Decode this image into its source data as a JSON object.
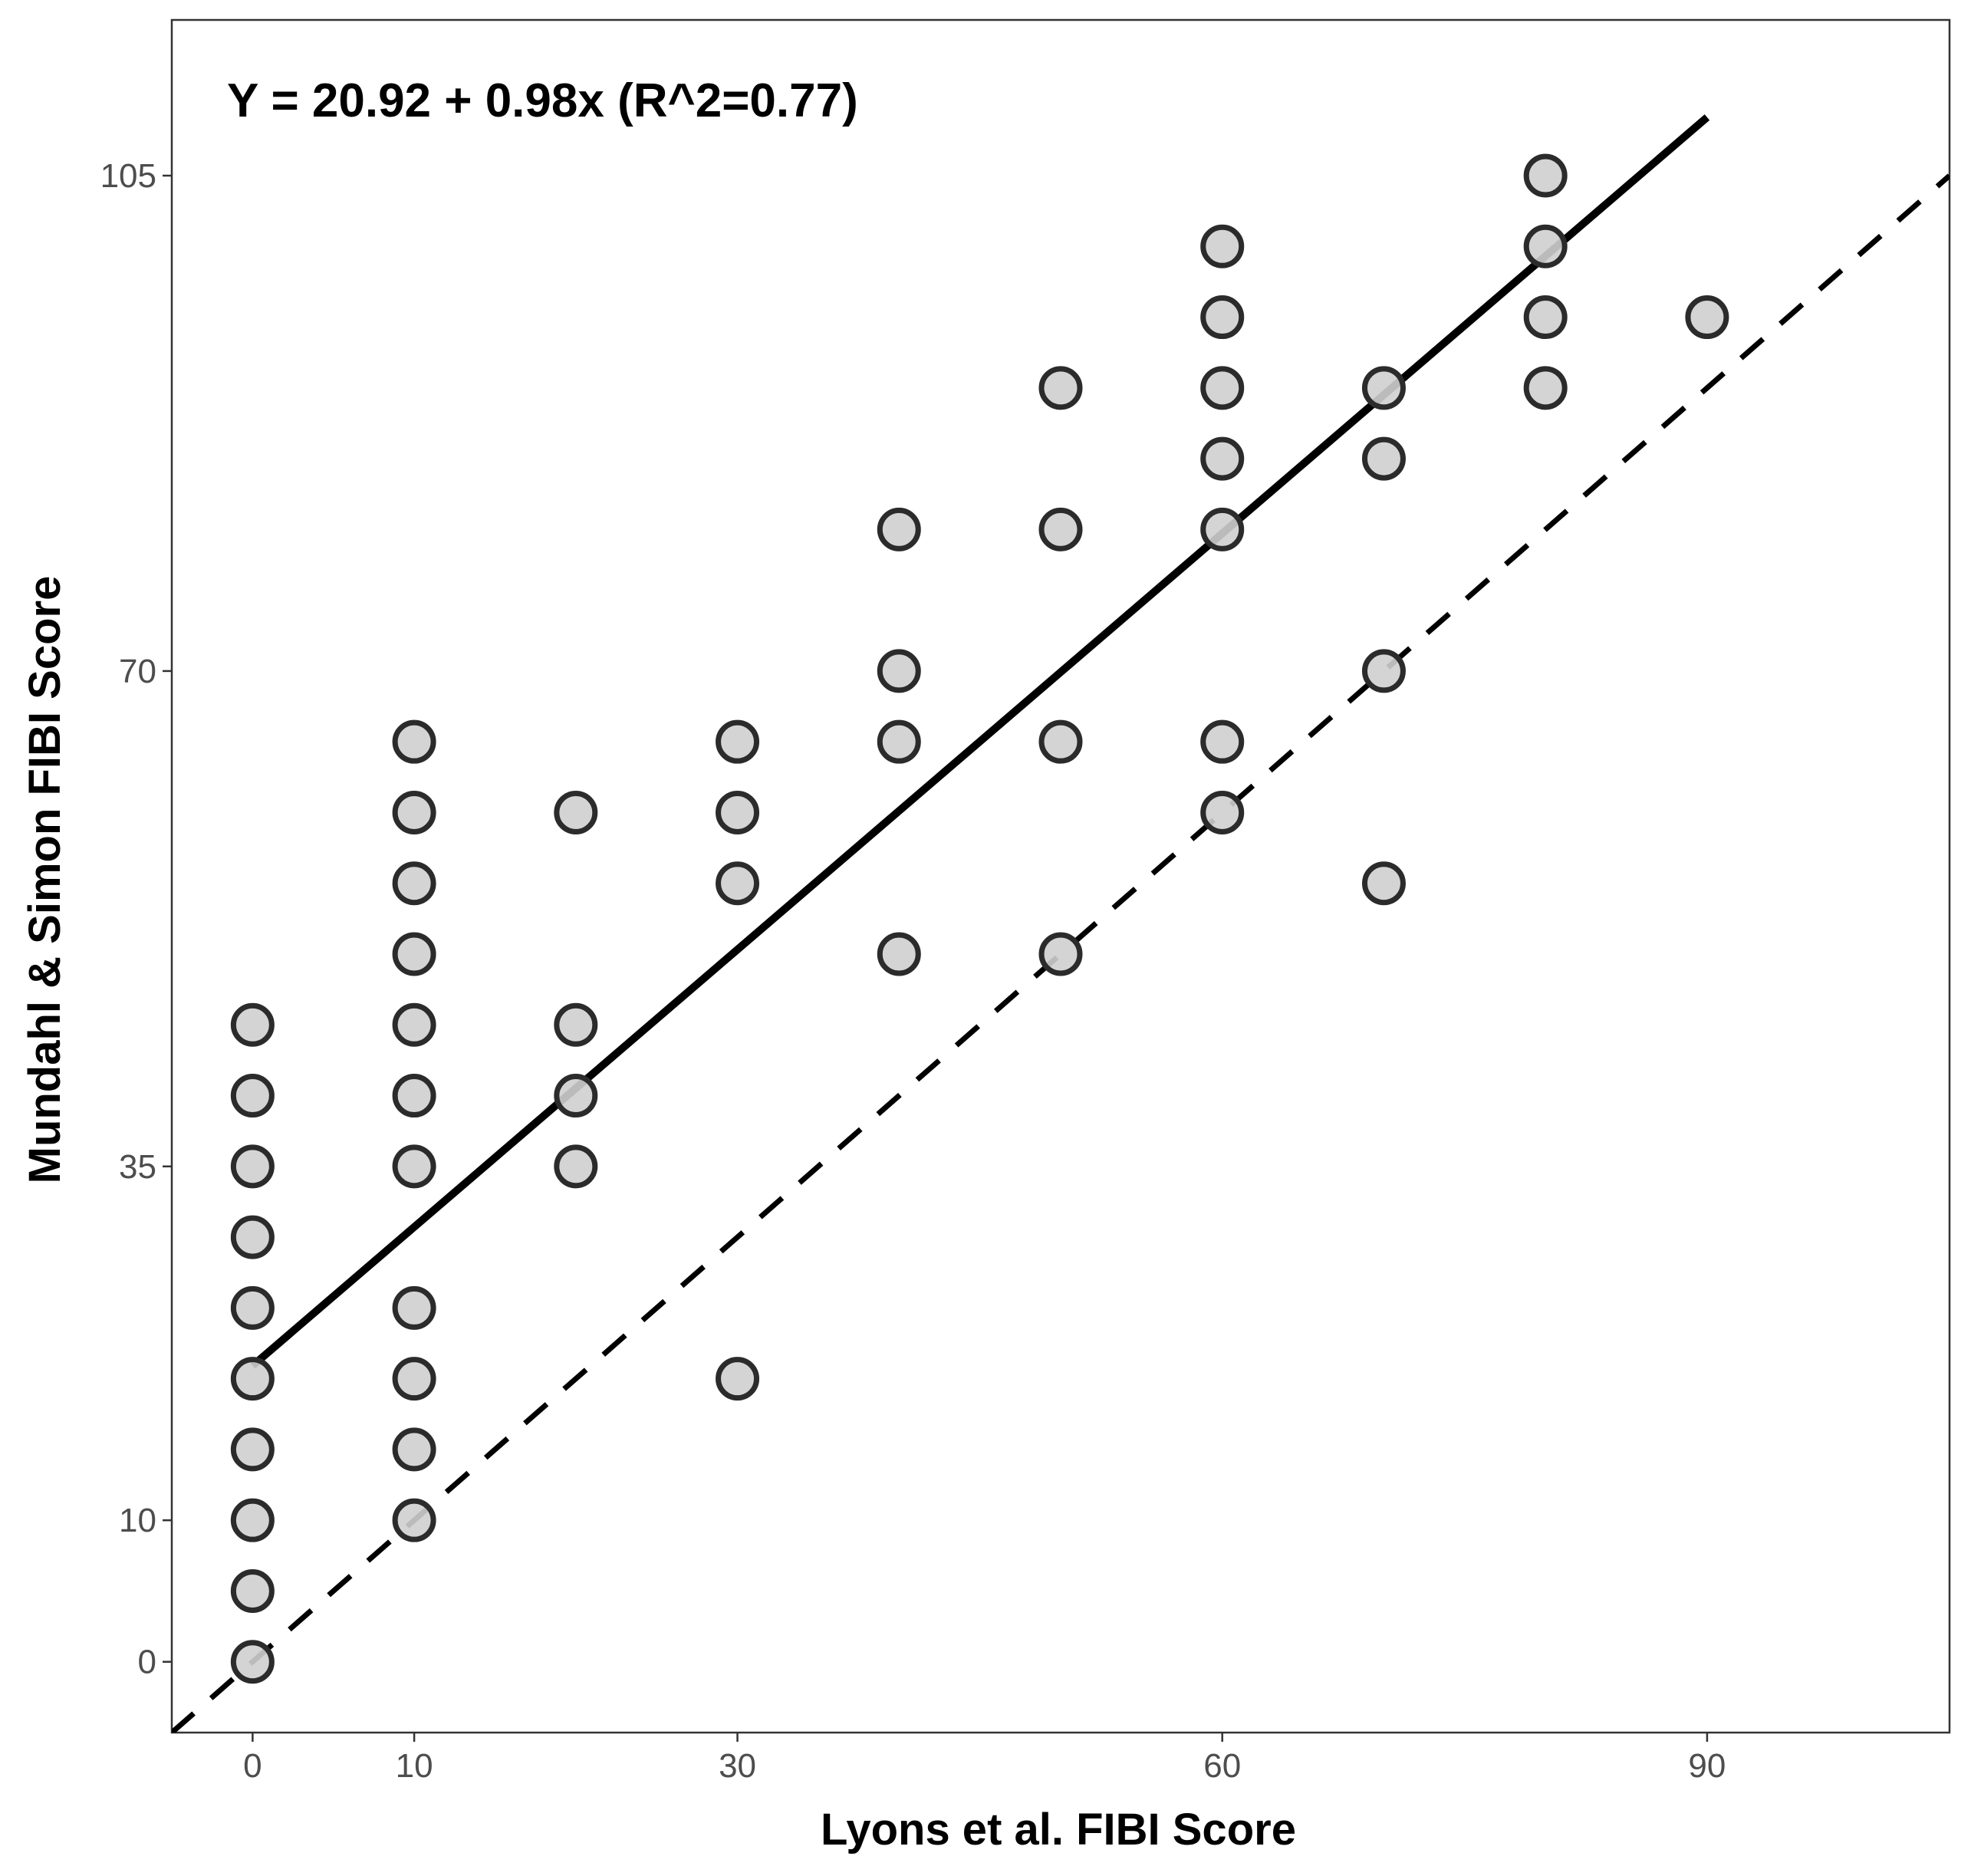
{
  "chart_data": {
    "type": "scatter",
    "title": "",
    "annotation": "Y = 20.92 + 0.98x (R^2=0.77)",
    "xlabel": "Lyons et al. FIBI Score",
    "ylabel": "Mundahl & Simon FIBI Score",
    "xlim": [
      -5,
      105
    ],
    "ylim": [
      -5,
      116
    ],
    "xticks": [
      0,
      10,
      30,
      60,
      90
    ],
    "yticks": [
      0,
      10,
      35,
      70,
      105
    ],
    "grid": false,
    "regression_line": {
      "intercept": 20.92,
      "slope": 0.98,
      "x_range": [
        0,
        90
      ],
      "style": "solid"
    },
    "reference_line": {
      "intercept": 0,
      "slope": 1,
      "style": "dashed"
    },
    "points": [
      {
        "x": 0,
        "y": 0
      },
      {
        "x": 0,
        "y": 5
      },
      {
        "x": 0,
        "y": 10
      },
      {
        "x": 0,
        "y": 15
      },
      {
        "x": 0,
        "y": 20
      },
      {
        "x": 0,
        "y": 25
      },
      {
        "x": 0,
        "y": 30
      },
      {
        "x": 0,
        "y": 35
      },
      {
        "x": 0,
        "y": 40
      },
      {
        "x": 0,
        "y": 45
      },
      {
        "x": 10,
        "y": 10
      },
      {
        "x": 10,
        "y": 15
      },
      {
        "x": 10,
        "y": 20
      },
      {
        "x": 10,
        "y": 25
      },
      {
        "x": 10,
        "y": 35
      },
      {
        "x": 10,
        "y": 40
      },
      {
        "x": 10,
        "y": 45
      },
      {
        "x": 10,
        "y": 50
      },
      {
        "x": 10,
        "y": 55
      },
      {
        "x": 10,
        "y": 60
      },
      {
        "x": 10,
        "y": 65
      },
      {
        "x": 20,
        "y": 35
      },
      {
        "x": 20,
        "y": 40
      },
      {
        "x": 20,
        "y": 45
      },
      {
        "x": 20,
        "y": 60
      },
      {
        "x": 30,
        "y": 20
      },
      {
        "x": 30,
        "y": 55
      },
      {
        "x": 30,
        "y": 60
      },
      {
        "x": 30,
        "y": 65
      },
      {
        "x": 40,
        "y": 50
      },
      {
        "x": 40,
        "y": 65
      },
      {
        "x": 40,
        "y": 70
      },
      {
        "x": 40,
        "y": 80
      },
      {
        "x": 50,
        "y": 50
      },
      {
        "x": 50,
        "y": 65
      },
      {
        "x": 50,
        "y": 80
      },
      {
        "x": 50,
        "y": 90
      },
      {
        "x": 60,
        "y": 60
      },
      {
        "x": 60,
        "y": 65
      },
      {
        "x": 60,
        "y": 80
      },
      {
        "x": 60,
        "y": 85
      },
      {
        "x": 60,
        "y": 90
      },
      {
        "x": 60,
        "y": 95
      },
      {
        "x": 60,
        "y": 100
      },
      {
        "x": 70,
        "y": 55
      },
      {
        "x": 70,
        "y": 70
      },
      {
        "x": 70,
        "y": 85
      },
      {
        "x": 70,
        "y": 90
      },
      {
        "x": 80,
        "y": 90
      },
      {
        "x": 80,
        "y": 95
      },
      {
        "x": 80,
        "y": 100
      },
      {
        "x": 80,
        "y": 105
      },
      {
        "x": 90,
        "y": 95
      }
    ],
    "point_fill": "#cfcfcf",
    "point_stroke": "#2b2b2b"
  }
}
